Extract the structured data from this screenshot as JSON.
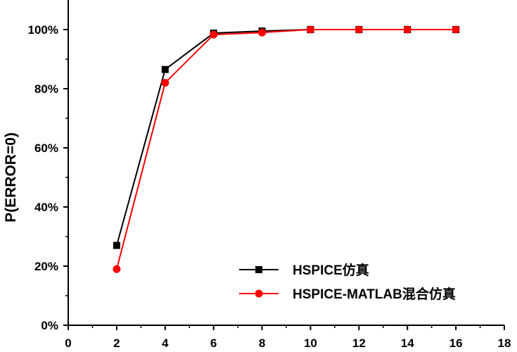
{
  "chart_data": {
    "type": "line",
    "title": "",
    "xlabel": "",
    "ylabel": "P(ERROR=0)",
    "xlim": [
      0,
      18
    ],
    "ylim": [
      0,
      1.1
    ],
    "x_ticks": [
      0,
      2,
      4,
      6,
      8,
      10,
      12,
      14,
      16,
      18
    ],
    "y_ticks": [
      0,
      0.2,
      0.4,
      0.6,
      0.8,
      1.0
    ],
    "y_tick_labels": [
      "0%",
      "20%",
      "40%",
      "60%",
      "80%",
      "100%"
    ],
    "grid": false,
    "legend_position": "bottom-right",
    "x": [
      2,
      4,
      6,
      8,
      10,
      12,
      14,
      16
    ],
    "series": [
      {
        "name": "HSPICE仿真",
        "color": "#000000",
        "marker": "square",
        "values": [
          0.27,
          0.865,
          0.988,
          0.995,
          1.0,
          1.0,
          1.0,
          1.0
        ]
      },
      {
        "name": "HSPICE-MATLAB混合仿真",
        "color": "#ff0000",
        "marker": "circle",
        "values": [
          0.19,
          0.82,
          0.983,
          0.99,
          1.0,
          1.0,
          1.0,
          1.0
        ]
      }
    ]
  }
}
